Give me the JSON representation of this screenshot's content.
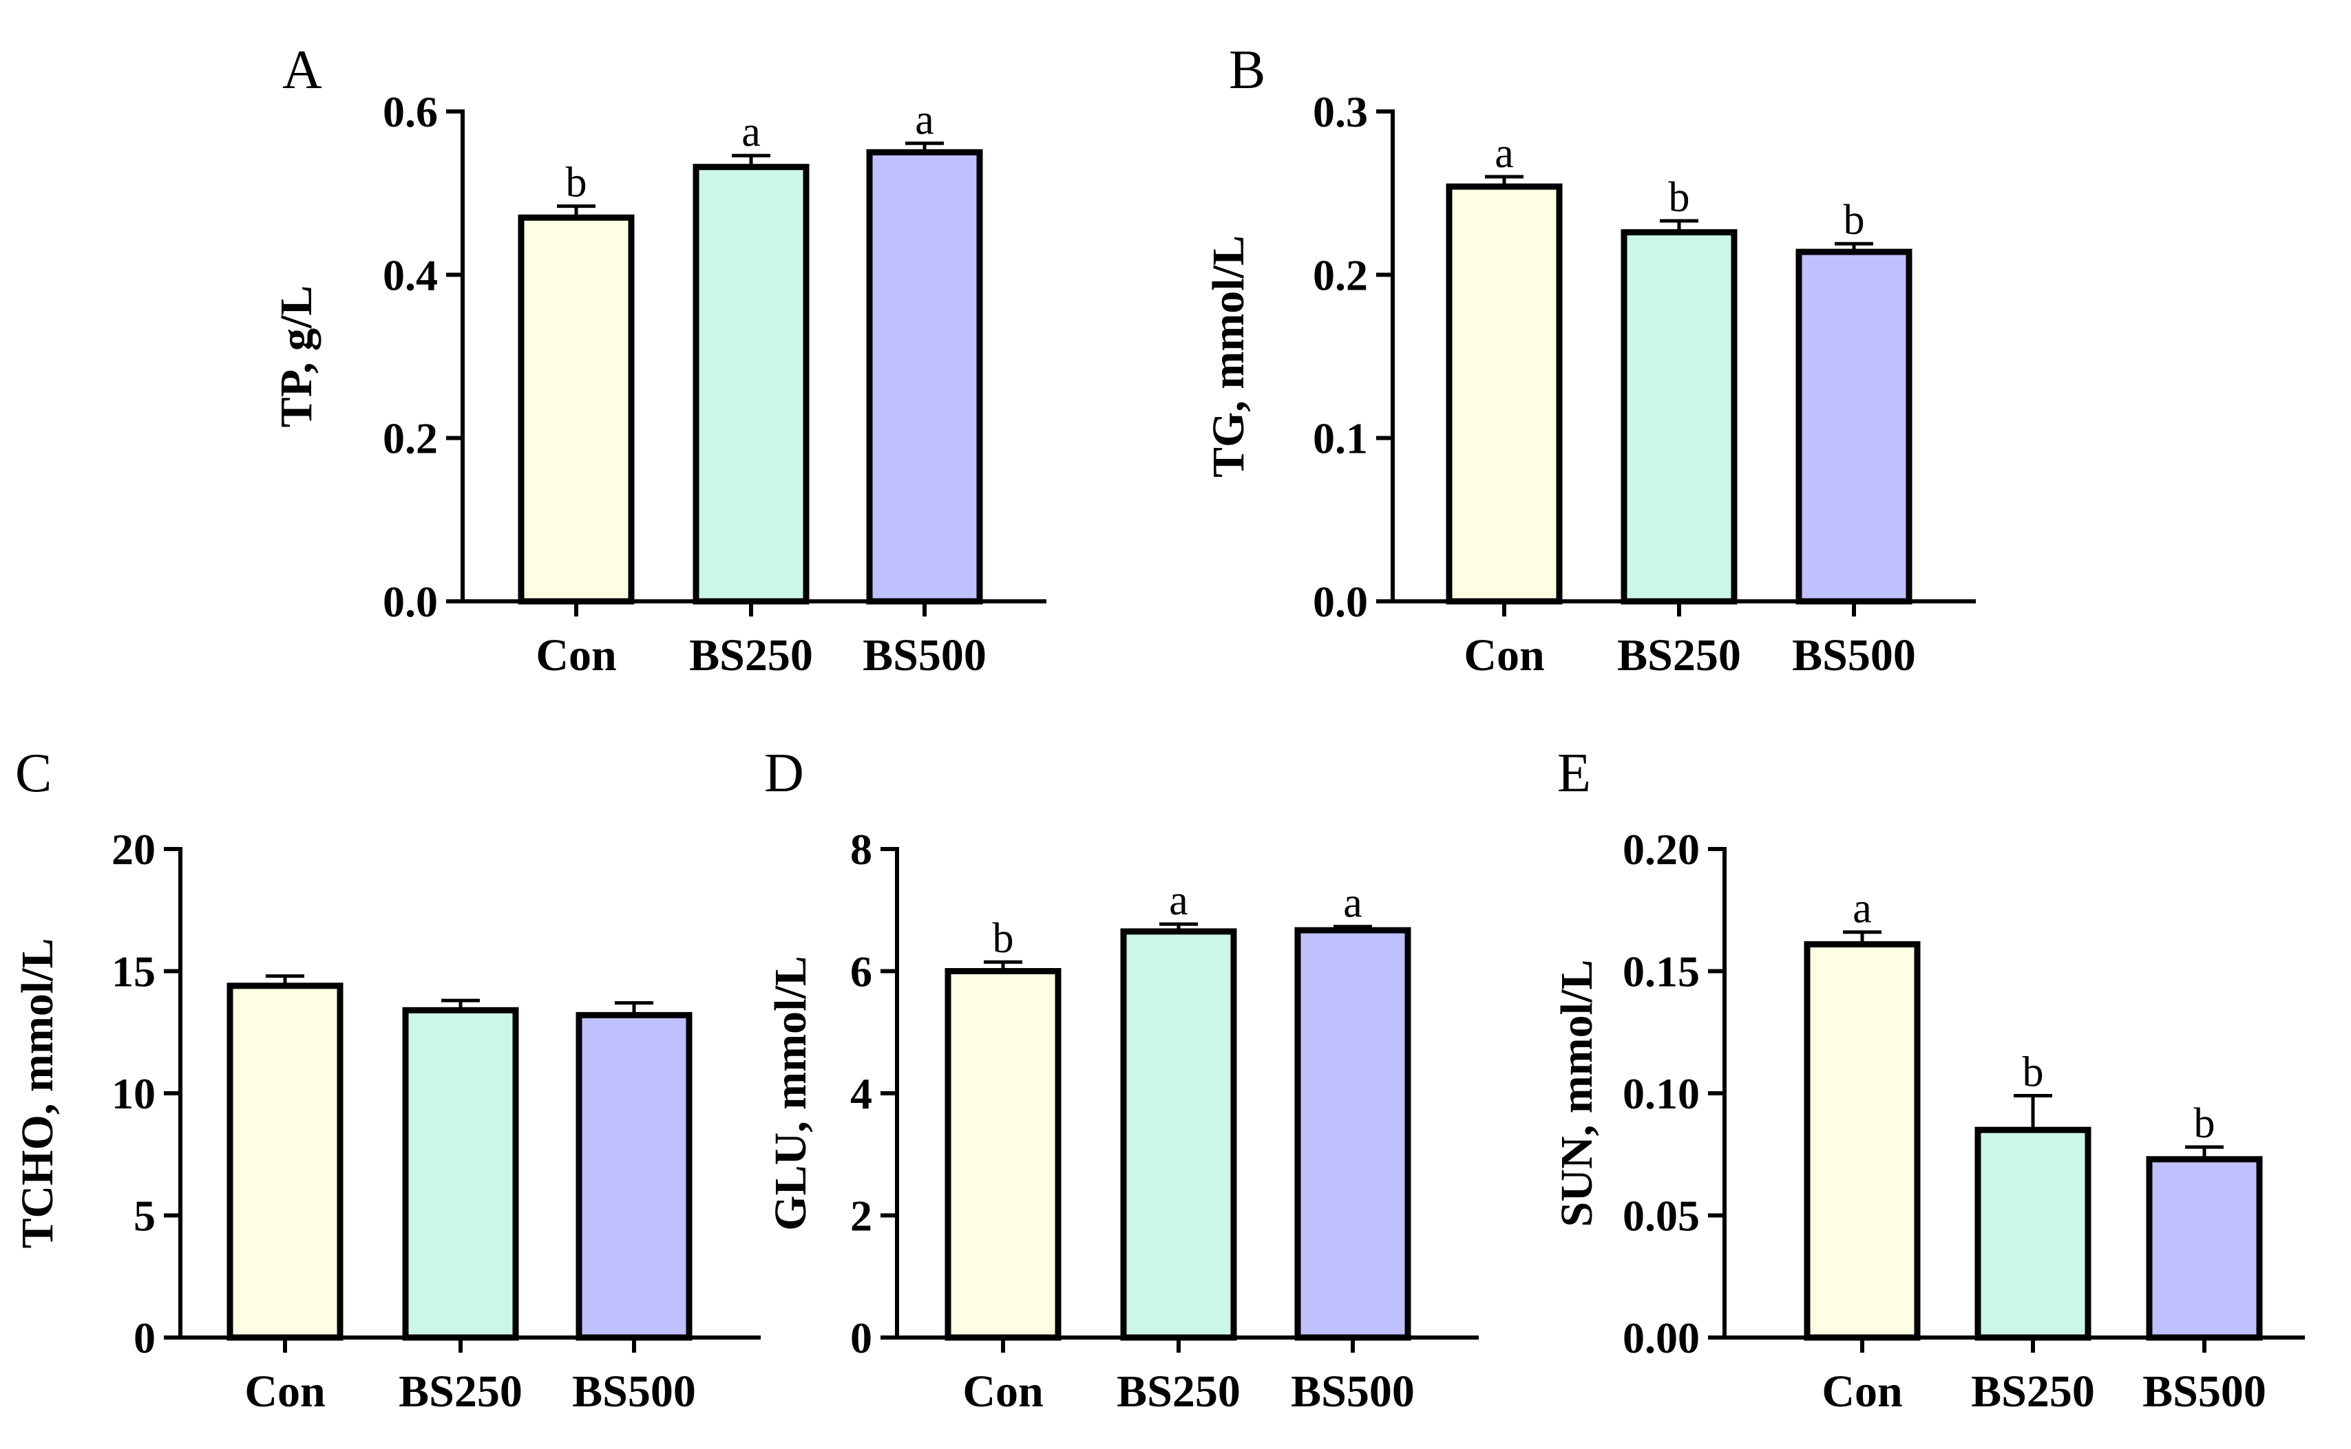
{
  "categories": [
    "Con",
    "BS250",
    "BS500"
  ],
  "colors": {
    "Con": "#ffffe4",
    "BS250": "#ccf7e7",
    "BS500": "#c0c0ff"
  },
  "chart_data": [
    {
      "type": "bar",
      "panel": "A",
      "ylabel": "TP, g/L",
      "categories": [
        "Con",
        "BS250",
        "BS500"
      ],
      "values": [
        0.47,
        0.532,
        0.55
      ],
      "errors": [
        0.014,
        0.014,
        0.011
      ],
      "significance": [
        "b",
        "a",
        "a"
      ],
      "ylim": [
        0,
        0.6
      ],
      "ticks": [
        0.0,
        0.2,
        0.4,
        0.6
      ],
      "tick_labels": [
        "0.0",
        "0.2",
        "0.4",
        "0.6"
      ]
    },
    {
      "type": "bar",
      "panel": "B",
      "ylabel": "TG, mmol/L",
      "categories": [
        "Con",
        "BS250",
        "BS500"
      ],
      "values": [
        0.254,
        0.226,
        0.214
      ],
      "errors": [
        0.006,
        0.007,
        0.005
      ],
      "significance": [
        "a",
        "b",
        "b"
      ],
      "ylim": [
        0,
        0.3
      ],
      "ticks": [
        0.0,
        0.1,
        0.2,
        0.3
      ],
      "tick_labels": [
        "0.0",
        "0.1",
        "0.2",
        "0.3"
      ]
    },
    {
      "type": "bar",
      "panel": "C",
      "ylabel": "TCHO, mmol/L",
      "categories": [
        "Con",
        "BS250",
        "BS500"
      ],
      "values": [
        14.4,
        13.4,
        13.2
      ],
      "errors": [
        0.4,
        0.4,
        0.5
      ],
      "significance": [
        "",
        "",
        ""
      ],
      "ylim": [
        0,
        20
      ],
      "ticks": [
        0,
        5,
        10,
        15,
        20
      ],
      "tick_labels": [
        "0",
        "5",
        "10",
        "15",
        "20"
      ]
    },
    {
      "type": "bar",
      "panel": "D",
      "ylabel": "GLU, mmol/L",
      "categories": [
        "Con",
        "BS250",
        "BS500"
      ],
      "values": [
        6.0,
        6.65,
        6.67
      ],
      "errors": [
        0.15,
        0.12,
        0.06
      ],
      "significance": [
        "b",
        "a",
        "a"
      ],
      "ylim": [
        0,
        8
      ],
      "ticks": [
        0,
        2,
        4,
        6,
        8
      ],
      "tick_labels": [
        "0",
        "2",
        "4",
        "6",
        "8"
      ]
    },
    {
      "type": "bar",
      "panel": "E",
      "ylabel": "SUN, mmol/L",
      "categories": [
        "Con",
        "BS250",
        "BS500"
      ],
      "values": [
        0.161,
        0.085,
        0.073
      ],
      "errors": [
        0.005,
        0.014,
        0.005
      ],
      "significance": [
        "a",
        "b",
        "b"
      ],
      "ylim": [
        0,
        0.2
      ],
      "ticks": [
        0.0,
        0.05,
        0.1,
        0.15,
        0.2
      ],
      "tick_labels": [
        "0.00",
        "0.05",
        "0.10",
        "0.15",
        "0.20"
      ]
    }
  ]
}
